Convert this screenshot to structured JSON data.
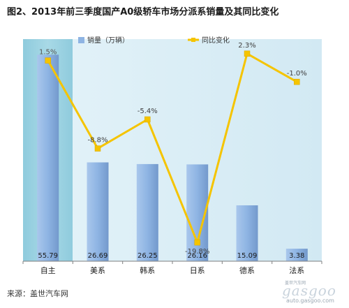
{
  "title": "图2、2013年前三季度国产A0级轿车市场分派系销量及其同比变化",
  "source": "来源：盖世汽车网",
  "watermark": {
    "brand": "gasgoo",
    "url": "auto.gasgoo.com",
    "tagline": "盖世汽车网"
  },
  "colors": {
    "bar": "#8eb4e3",
    "bar_highlight": "#7aa6dc",
    "line": "#f5c400",
    "plot_bg": "#dbeef6",
    "highlight_bg": "#9fd4e3"
  },
  "chart_data": {
    "type": "bar",
    "categories": [
      "自主",
      "美系",
      "韩系",
      "日系",
      "德系",
      "法系"
    ],
    "series": [
      {
        "name": "销量（万辆）",
        "type": "bar",
        "axis": "left",
        "values": [
          55.79,
          26.69,
          26.25,
          26.16,
          15.09,
          3.38
        ]
      },
      {
        "name": "同比变化",
        "type": "line",
        "axis": "right",
        "values": [
          1.5,
          -8.8,
          -5.4,
          -19.8,
          2.3,
          -1.0
        ]
      }
    ],
    "bar_labels": [
      "55.79",
      "26.69",
      "26.25",
      "26.16",
      "15.09",
      "3.38"
    ],
    "line_labels": [
      "1.5%",
      "-8.8%",
      "-5.4%",
      "-19.8%",
      "2.3%",
      "-1.0%"
    ],
    "left_ylim": [
      0,
      60
    ],
    "right_ylim": [
      -22,
      4
    ],
    "legend_position": "top-left",
    "grid": false,
    "highlighted_category": "自主"
  }
}
